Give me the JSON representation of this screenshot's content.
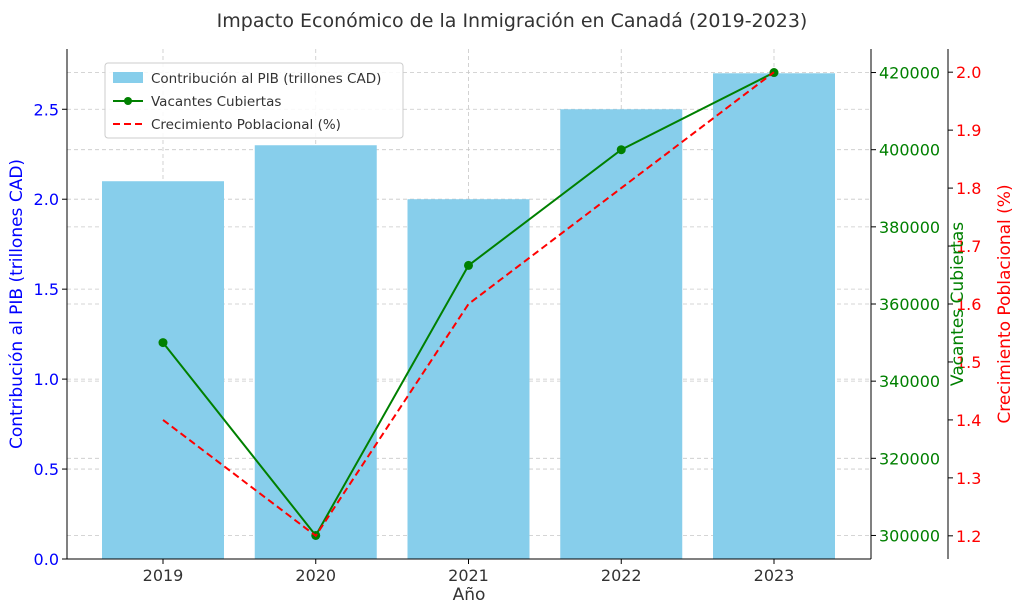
{
  "chart_data": {
    "type": "bar",
    "title": "Impacto Económico de la Inmigración en Canadá (2019-2023)",
    "xlabel": "Año",
    "categories": [
      "2019",
      "2020",
      "2021",
      "2022",
      "2023"
    ],
    "grid": true,
    "legend_position": "top-left",
    "series": [
      {
        "name": "Contribución al PIB (trillones CAD)",
        "kind": "bar",
        "axis": "left",
        "color": "#87ceeb",
        "values": [
          2.1,
          2.3,
          2.0,
          2.5,
          2.7
        ]
      },
      {
        "name": "Vacantes Cubiertas",
        "kind": "line",
        "marker": "circle",
        "axis": "right1",
        "color": "#008000",
        "values": [
          350000,
          300000,
          370000,
          400000,
          420000
        ]
      },
      {
        "name": "Crecimiento Poblacional (%)",
        "kind": "line",
        "dash": "dashed",
        "axis": "right2",
        "color": "#ff0000",
        "values": [
          1.4,
          1.2,
          1.6,
          1.8,
          2.0
        ]
      }
    ],
    "axes": {
      "left": {
        "label": "Contribución al PIB (trillones CAD)",
        "color": "#0000ff",
        "ylim": [
          0,
          2.835
        ],
        "ticks": [
          0.0,
          0.5,
          1.0,
          1.5,
          2.0,
          2.5
        ],
        "tick_labels": [
          "0.0",
          "0.5",
          "1.0",
          "1.5",
          "2.0",
          "2.5"
        ]
      },
      "right1": {
        "label": "Vacantes Cubiertas",
        "color": "#008000",
        "ylim": [
          293900,
          426100
        ],
        "ticks": [
          300000,
          320000,
          340000,
          360000,
          380000,
          400000,
          420000
        ],
        "tick_labels": [
          "300000",
          "320000",
          "340000",
          "360000",
          "380000",
          "400000",
          "420000"
        ]
      },
      "right2": {
        "label": "Crecimiento Poblacional (%)",
        "color": "#ff0000",
        "ylim": [
          1.16,
          2.04
        ],
        "ticks": [
          1.2,
          1.3,
          1.4,
          1.5,
          1.6,
          1.7,
          1.8,
          1.9,
          2.0
        ],
        "tick_labels": [
          "1.2",
          "1.3",
          "1.4",
          "1.5",
          "1.6",
          "1.7",
          "1.8",
          "1.9",
          "2.0"
        ]
      }
    }
  }
}
